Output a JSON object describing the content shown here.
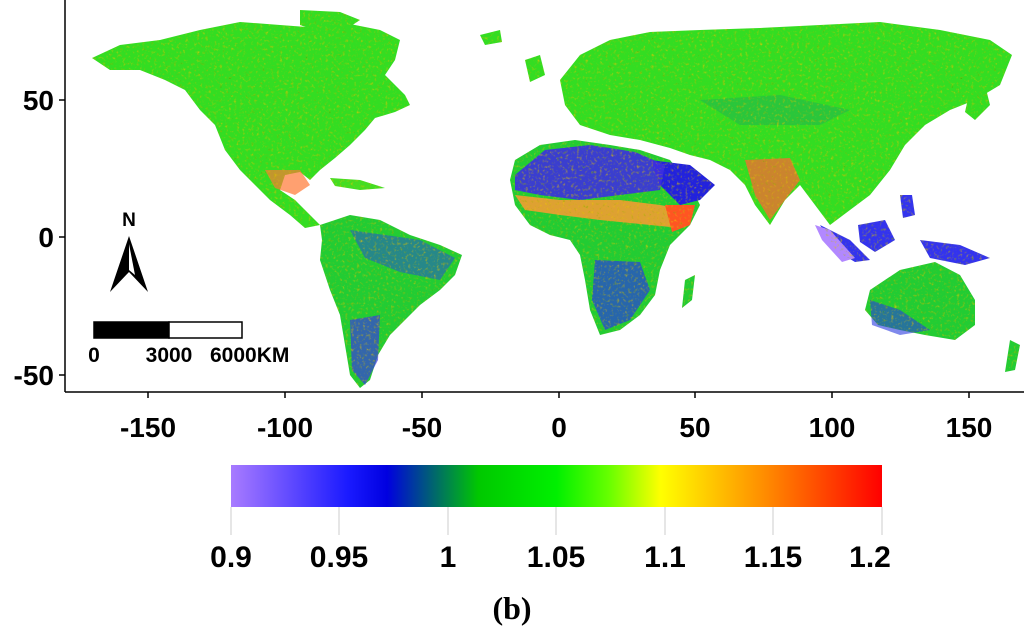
{
  "map": {
    "x_ticks": [
      {
        "value": -150,
        "label": "-150"
      },
      {
        "value": -100,
        "label": "-100"
      },
      {
        "value": -50,
        "label": "-50"
      },
      {
        "value": 0,
        "label": "0"
      },
      {
        "value": 50,
        "label": "50"
      },
      {
        "value": 100,
        "label": "100"
      },
      {
        "value": 150,
        "label": "150"
      }
    ],
    "y_ticks": [
      {
        "value": 50,
        "label": "50"
      },
      {
        "value": 0,
        "label": "0"
      },
      {
        "value": -50,
        "label": "-50"
      }
    ],
    "x_range": [
      -180,
      170
    ],
    "y_range": [
      -56,
      80
    ],
    "north_arrow": {
      "label": "N"
    },
    "scale_bar": {
      "labels": [
        "0",
        "3000",
        "6000KM"
      ]
    },
    "colors": {
      "low": "#a87bff",
      "mid": "#00e600",
      "high": "#ff0000",
      "land": "#33e033",
      "water": "#ffffff"
    }
  },
  "colorbar": {
    "ticks": [
      {
        "value": 0.9,
        "label": "0.9"
      },
      {
        "value": 0.95,
        "label": "0.95"
      },
      {
        "value": 1.0,
        "label": "1"
      },
      {
        "value": 1.05,
        "label": "1.05"
      },
      {
        "value": 1.1,
        "label": "1.1"
      },
      {
        "value": 1.15,
        "label": "1.15"
      },
      {
        "value": 1.2,
        "label": "1.2"
      }
    ],
    "range": [
      0.9,
      1.2
    ],
    "stops": [
      "#a87bff",
      "#0000f0",
      "#00e600",
      "#00f000",
      "#ffff00",
      "#ff9900",
      "#ff0000"
    ]
  },
  "panel_label": "(b)"
}
